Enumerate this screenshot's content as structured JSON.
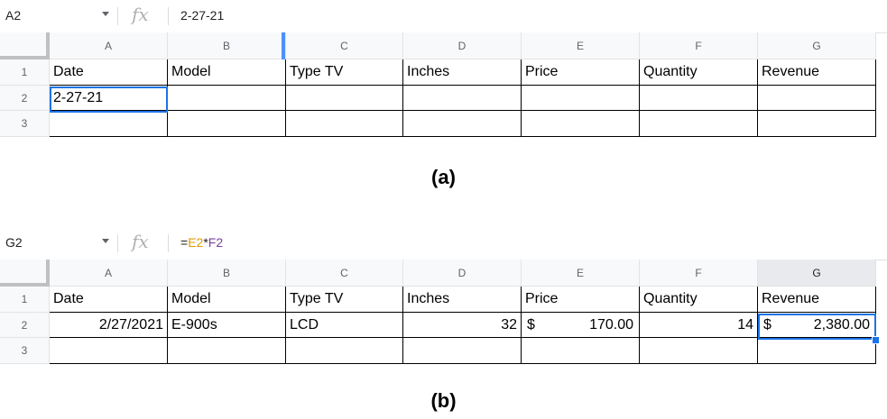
{
  "columns": [
    "A",
    "B",
    "C",
    "D",
    "E",
    "F",
    "G"
  ],
  "rows": [
    "1",
    "2",
    "3"
  ],
  "headers": [
    "Date",
    "Model",
    "Type TV",
    "Inches",
    "Price",
    "Quantity",
    "Revenue"
  ],
  "panel_a": {
    "name_box": "A2",
    "formula": "2-27-21",
    "caption": "(a)",
    "row2": [
      "2-27-21",
      "",
      "",
      "",
      "",
      "",
      ""
    ]
  },
  "panel_b": {
    "name_box": "G2",
    "formula_parts": [
      "=",
      "E2",
      "*",
      "F2"
    ],
    "caption": "(b)",
    "row2": {
      "date": "2/27/2021",
      "model": "E-900s",
      "type": "LCD",
      "inches": "32",
      "price_symbol": "$",
      "price": "170.00",
      "quantity": "14",
      "revenue_symbol": "$",
      "revenue": "2,380.00"
    }
  },
  "fx_label": "fx"
}
